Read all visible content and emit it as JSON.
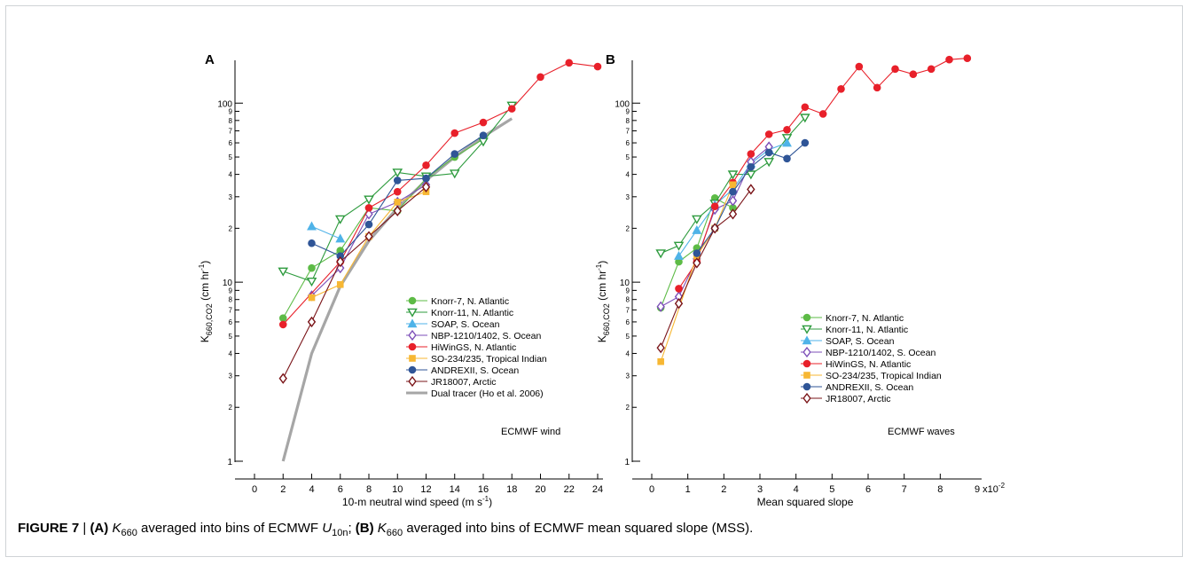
{
  "caption": {
    "label": "FIGURE 7",
    "separator": "|",
    "part_a_label": "(A)",
    "part_a_var": "K",
    "part_a_var_sub": "660",
    "part_a_text": " averaged into bins of ECMWF ",
    "part_a_var2": "U",
    "part_a_var2_sub": "10n",
    "part_a_end": ";",
    "part_b_label": "(B)",
    "part_b_var": "K",
    "part_b_var_sub": "660",
    "part_b_text": " averaged into bins of ECMWF mean squared slope (MSS)."
  },
  "legend_entries": [
    {
      "name": "Knorr-7, N. Atlantic",
      "color": "#5dbb46",
      "marker": "circle-filled"
    },
    {
      "name": "Knorr-11, N. Atlantic",
      "color": "#2e9b3e",
      "marker": "triangle-down-open"
    },
    {
      "name": "SOAP, S. Ocean",
      "color": "#4fb3e8",
      "marker": "triangle-up-filled"
    },
    {
      "name": "NBP-1210/1402, S. Ocean",
      "color": "#7d4fb8",
      "marker": "diamond-open"
    },
    {
      "name": "HiWinGS, N. Atlantic",
      "color": "#e8202a",
      "marker": "circle-filled"
    },
    {
      "name": "SO-234/235, Tropical Indian",
      "color": "#f7b733",
      "marker": "square-filled"
    },
    {
      "name": "ANDREXII, S. Ocean",
      "color": "#2f5597",
      "marker": "circle-filled"
    },
    {
      "name": "JR18007, Arctic",
      "color": "#7a1418",
      "marker": "diamond-open"
    },
    {
      "name": "Dual tracer (Ho et al. 2006)",
      "color": "#a6a6a6",
      "marker": "line"
    }
  ],
  "chart_data": [
    {
      "panel": "A",
      "type": "line",
      "xlabel": "10-m neutral wind speed (m s",
      "xlabel_sup": "-1",
      "xlabel_end": ")",
      "ylabel": "K",
      "ylabel_sub": "660,CO2",
      "ylabel_end": " (cm hr",
      "ylabel_sup": "-1",
      "ylabel_close": ")",
      "ylog": true,
      "xlim": [
        0,
        24
      ],
      "ylim": [
        1,
        190
      ],
      "x_ticks": [
        0,
        2,
        4,
        6,
        8,
        10,
        12,
        14,
        16,
        18,
        20,
        22,
        24
      ],
      "x_tick_labels": [
        "0",
        "2",
        "4",
        "6",
        "8",
        "10",
        "12",
        "14",
        "16",
        "18",
        "20",
        "22",
        "24"
      ],
      "annotation": "ECMWF wind",
      "legend_position": "lower-right",
      "series": [
        {
          "name": "Knorr-7, N. Atlantic",
          "x": [
            2,
            4,
            6,
            8,
            10,
            12,
            14,
            16
          ],
          "y": [
            6.3,
            12,
            15,
            26,
            25,
            38,
            50,
            63
          ]
        },
        {
          "name": "Knorr-11, N. Atlantic",
          "x": [
            2,
            4,
            6,
            8,
            10,
            12,
            14,
            16,
            18
          ],
          "y": [
            11.5,
            10.1,
            22.5,
            29,
            41,
            39,
            40.5,
            61,
            97
          ]
        },
        {
          "name": "SOAP, S. Ocean",
          "x": [
            4,
            6
          ],
          "y": [
            20.5,
            17.5
          ]
        },
        {
          "name": "NBP-1210/1402, S. Ocean",
          "x": [
            4,
            6,
            8,
            10,
            12
          ],
          "y": [
            8.4,
            12,
            24,
            28,
            35
          ]
        },
        {
          "name": "HiWinGS, N. Atlantic",
          "x": [
            2,
            6,
            8,
            10,
            12,
            14,
            16,
            18,
            20,
            22,
            24
          ],
          "y": [
            5.8,
            13,
            26,
            32,
            45,
            68,
            78,
            93,
            140,
            168,
            160
          ]
        },
        {
          "name": "SO-234/235, Tropical Indian",
          "x": [
            4,
            6,
            8,
            10,
            12
          ],
          "y": [
            8.2,
            9.7,
            18,
            28,
            32
          ]
        },
        {
          "name": "ANDREXII, S. Ocean",
          "x": [
            4,
            6,
            8,
            10,
            12,
            14,
            16
          ],
          "y": [
            16.5,
            14,
            21,
            37,
            38,
            52,
            66
          ]
        },
        {
          "name": "JR18007, Arctic",
          "x": [
            2,
            4,
            6,
            8,
            10,
            12
          ],
          "y": [
            2.9,
            6,
            13,
            18,
            25,
            34
          ]
        },
        {
          "name": "Dual tracer (Ho et al. 2006)",
          "x": [
            2,
            4,
            6,
            8,
            10,
            12,
            14,
            16,
            18
          ],
          "y": [
            1.0,
            4,
            9.5,
            17,
            26,
            37,
            50,
            65,
            82
          ]
        }
      ]
    },
    {
      "panel": "B",
      "type": "line",
      "xlabel": "Mean squared slope",
      "ylabel": "K",
      "ylabel_sub": "660,CO2",
      "ylabel_end": " (cm hr",
      "ylabel_sup": "-1",
      "ylabel_close": ")",
      "ylog": true,
      "xlim": [
        0,
        0.09
      ],
      "ylim": [
        1,
        190
      ],
      "x_ticks": [
        0,
        0.01,
        0.02,
        0.03,
        0.04,
        0.05,
        0.06,
        0.07,
        0.08
      ],
      "x_tick_labels": [
        "0",
        "1",
        "2",
        "3",
        "4",
        "5",
        "6",
        "7",
        "8"
      ],
      "x_multiplier": "9 x10",
      "x_multiplier_sup": "-2",
      "annotation": "ECMWF waves",
      "legend_position": "lower-right",
      "series": [
        {
          "name": "Knorr-7, N. Atlantic",
          "x": [
            0.0025,
            0.0075,
            0.0125,
            0.0175,
            0.0225
          ],
          "y": [
            7.2,
            13,
            15.5,
            29.5,
            26
          ]
        },
        {
          "name": "Knorr-11, N. Atlantic",
          "x": [
            0.0025,
            0.0075,
            0.0125,
            0.0175,
            0.0225,
            0.0275,
            0.0325,
            0.0375,
            0.0425
          ],
          "y": [
            14.5,
            16,
            22.5,
            27.5,
            40,
            40,
            47,
            64,
            83
          ]
        },
        {
          "name": "SOAP, S. Ocean",
          "x": [
            0.0075,
            0.0125,
            0.0175,
            0.0225,
            0.0275,
            0.0325,
            0.0375
          ],
          "y": [
            14,
            19.5,
            27,
            33,
            46,
            55,
            60
          ]
        },
        {
          "name": "NBP-1210/1402, S. Ocean",
          "x": [
            0.0025,
            0.0075,
            0.0125,
            0.0175,
            0.0225,
            0.0275,
            0.0325
          ],
          "y": [
            7.3,
            8.3,
            13.5,
            25.5,
            28.5,
            47,
            57
          ]
        },
        {
          "name": "HiWinGS, N. Atlantic",
          "x": [
            0.0075,
            0.0125,
            0.0175,
            0.0225,
            0.0275,
            0.0325,
            0.0375,
            0.0425,
            0.0475,
            0.0525,
            0.0575,
            0.0625,
            0.0675,
            0.0725,
            0.0775,
            0.0825,
            0.0875
          ],
          "y": [
            9.2,
            13,
            26.5,
            36,
            52,
            67,
            71,
            95,
            87,
            120,
            160,
            122,
            155,
            145,
            155,
            175,
            178
          ]
        },
        {
          "name": "SO-234/235, Tropical Indian",
          "x": [
            0.0025,
            0.0125,
            0.0175,
            0.0225
          ],
          "y": [
            3.6,
            14,
            20,
            35
          ]
        },
        {
          "name": "ANDREXII, S. Ocean",
          "x": [
            0.0125,
            0.0175,
            0.0225,
            0.0275,
            0.0325,
            0.0375,
            0.0425
          ],
          "y": [
            14.5,
            20,
            32,
            44,
            53,
            49,
            60
          ]
        },
        {
          "name": "JR18007, Arctic",
          "x": [
            0.0025,
            0.0075,
            0.0125,
            0.0175,
            0.0225,
            0.0275
          ],
          "y": [
            4.3,
            7.6,
            12.8,
            20,
            24,
            33
          ]
        }
      ]
    }
  ]
}
